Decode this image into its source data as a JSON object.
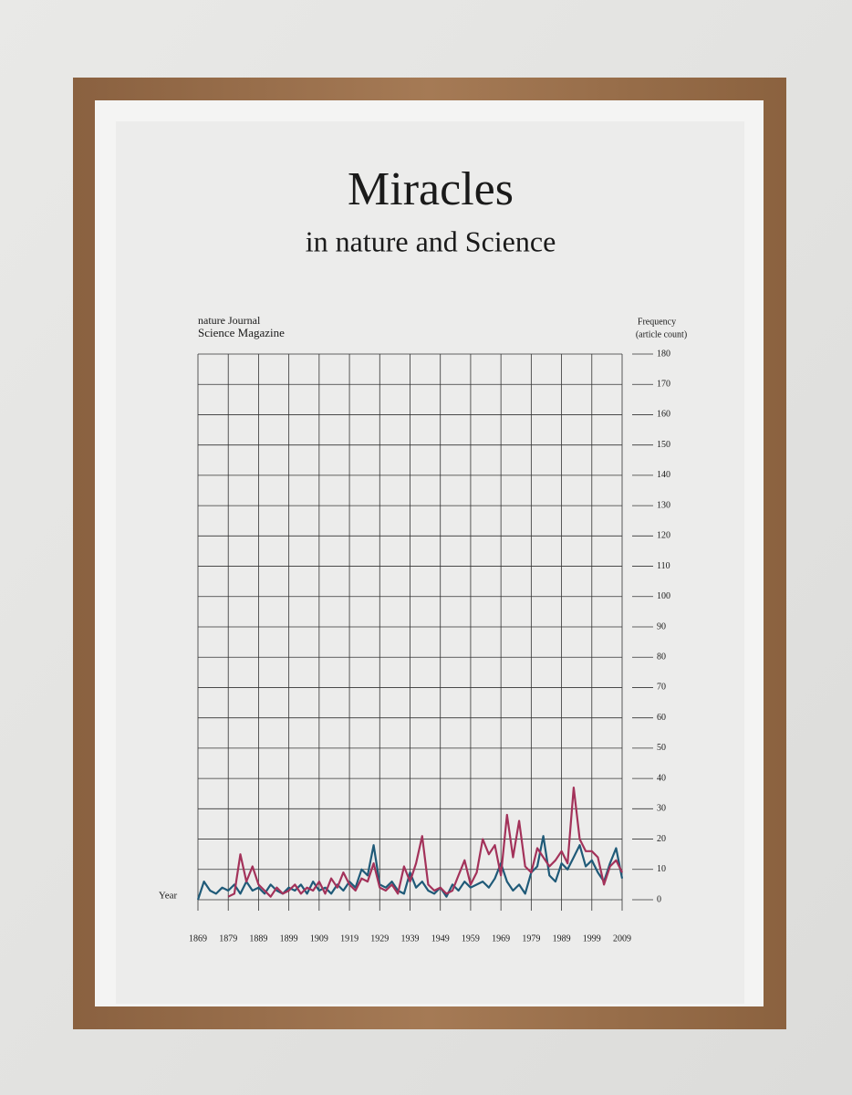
{
  "chart_data": {
    "type": "line",
    "title": "Miracles",
    "subtitle": "in nature and Science",
    "x_label": "Year",
    "y_label_lines": [
      "Frequency",
      "(article count)"
    ],
    "x": [
      1869,
      1871,
      1873,
      1875,
      1877,
      1879,
      1881,
      1883,
      1885,
      1887,
      1889,
      1891,
      1893,
      1895,
      1897,
      1899,
      1901,
      1903,
      1905,
      1907,
      1909,
      1911,
      1913,
      1915,
      1917,
      1919,
      1921,
      1923,
      1925,
      1927,
      1929,
      1931,
      1933,
      1935,
      1937,
      1939,
      1941,
      1943,
      1945,
      1947,
      1949,
      1951,
      1953,
      1955,
      1957,
      1959,
      1961,
      1963,
      1965,
      1967,
      1969,
      1971,
      1973,
      1975,
      1977,
      1979,
      1981,
      1983,
      1985,
      1987,
      1989,
      1991,
      1993,
      1995,
      1997,
      1999,
      2001,
      2003,
      2005,
      2007,
      2009
    ],
    "series": [
      {
        "name": "nature Journal",
        "color": "#1f5a78",
        "values": [
          0,
          6,
          3,
          2,
          4,
          3,
          5,
          2,
          6,
          3,
          4,
          2,
          5,
          3,
          2,
          4,
          3,
          5,
          2,
          6,
          3,
          4,
          2,
          5,
          3,
          6,
          4,
          10,
          8,
          18,
          5,
          4,
          6,
          3,
          2,
          9,
          4,
          6,
          3,
          2,
          4,
          1,
          5,
          3,
          6,
          4,
          5,
          6,
          4,
          7,
          12,
          6,
          3,
          5,
          2,
          9,
          11,
          21,
          8,
          6,
          12,
          10,
          14,
          18,
          11,
          13,
          9,
          6,
          12,
          17,
          7
        ]
      },
      {
        "name": "Science Magazine",
        "color": "#a3325a",
        "values": [
          null,
          null,
          null,
          null,
          null,
          1,
          2,
          15,
          6,
          11,
          5,
          3,
          1,
          4,
          2,
          3,
          5,
          2,
          4,
          3,
          6,
          2,
          7,
          4,
          9,
          5,
          3,
          7,
          6,
          12,
          4,
          3,
          5,
          2,
          11,
          6,
          12,
          21,
          5,
          3,
          4,
          2,
          3,
          8,
          13,
          5,
          9,
          20,
          15,
          18,
          8,
          28,
          14,
          26,
          11,
          9,
          17,
          14,
          11,
          13,
          16,
          12,
          37,
          20,
          16,
          16,
          14,
          5,
          11,
          13,
          9
        ]
      }
    ],
    "xlim": [
      1869,
      2009
    ],
    "xticks": [
      1869,
      1879,
      1889,
      1899,
      1909,
      1919,
      1929,
      1939,
      1949,
      1959,
      1969,
      1979,
      1989,
      1999,
      2009
    ],
    "ylim": [
      0,
      180
    ],
    "yticks": [
      0,
      10,
      20,
      30,
      40,
      50,
      60,
      70,
      80,
      90,
      100,
      110,
      120,
      130,
      140,
      150,
      160,
      170,
      180
    ],
    "grid": true
  }
}
